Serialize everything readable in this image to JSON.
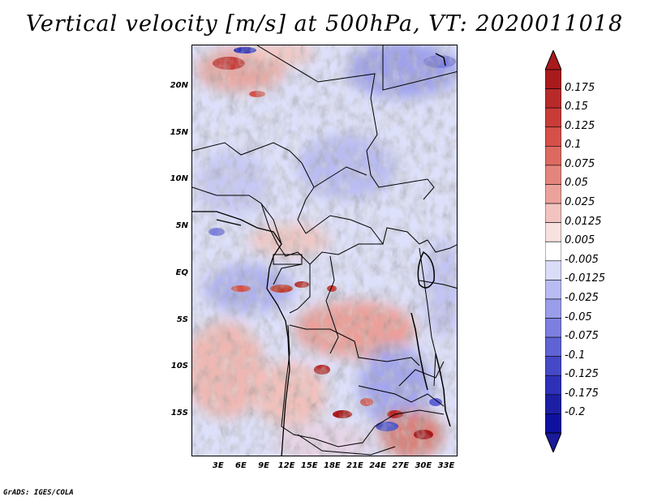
{
  "title": "Vertical velocity [m/s] at 500hPa, VT: 2020011018",
  "credit": "GrADS: IGES/COLA",
  "map": {
    "variable": "Vertical velocity",
    "units": "m/s",
    "level": "500hPa",
    "valid_time": "2020011018",
    "lat_range": [
      -19.5,
      24.5
    ],
    "lon_range": [
      -0.5,
      34.5
    ],
    "lat_ticks": [
      "20N",
      "15N",
      "10N",
      "5N",
      "EQ",
      "5S",
      "10S",
      "15S"
    ],
    "lat_tick_values": [
      20,
      15,
      10,
      5,
      0,
      -5,
      -10,
      -15
    ],
    "lon_ticks": [
      "3E",
      "6E",
      "9E",
      "12E",
      "15E",
      "18E",
      "21E",
      "24E",
      "27E",
      "30E",
      "33E"
    ],
    "lon_tick_values": [
      3,
      6,
      9,
      12,
      15,
      18,
      21,
      24,
      27,
      30,
      33
    ]
  },
  "colorbar": {
    "labels": [
      "0.175",
      "0.15",
      "0.125",
      "0.1",
      "0.075",
      "0.05",
      "0.025",
      "0.0125",
      "0.005",
      "-0.005",
      "-0.0125",
      "-0.025",
      "-0.05",
      "-0.075",
      "-0.1",
      "-0.125",
      "-0.175",
      "-0.2"
    ],
    "colors": [
      "#a81a1c",
      "#b82a2a",
      "#c83c38",
      "#d45048",
      "#dc6a60",
      "#e4857d",
      "#eca29b",
      "#f3c3bf",
      "#f8e2e0",
      "#ffffff",
      "#dadcf8",
      "#b9bcf2",
      "#9a9de9",
      "#7c7fdf",
      "#6063d4",
      "#4548c7",
      "#2e31b7",
      "#1c1fa3",
      "#0e10a0"
    ],
    "top_color": "#a81a1c",
    "bottom_color": "#1a1a9a"
  }
}
